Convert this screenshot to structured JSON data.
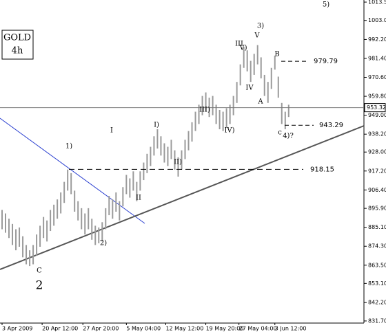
{
  "chart_data": {
    "type": "ohlc",
    "title": "GOLD",
    "subtitle": "4h",
    "high": [
      895,
      893,
      890,
      887,
      884,
      885,
      880,
      875,
      872,
      875,
      881,
      886,
      891,
      889,
      895,
      898,
      901,
      905,
      911,
      918,
      916,
      906,
      900,
      896,
      893,
      896,
      890,
      886,
      885,
      888,
      896,
      903,
      901,
      905,
      900,
      908,
      915,
      913,
      917,
      911,
      917,
      922,
      927,
      931,
      937,
      941,
      937,
      933,
      931,
      935,
      929,
      925,
      929,
      935,
      940,
      945,
      951,
      955,
      960,
      962,
      959,
      960,
      955,
      952,
      951,
      953,
      955,
      960,
      968,
      978,
      988,
      986,
      980,
      984,
      989,
      982,
      972,
      968,
      976,
      983,
      971,
      956,
      951,
      955
    ],
    "low": [
      884,
      882,
      879,
      875,
      872,
      874,
      868,
      864,
      863,
      864,
      869,
      874,
      879,
      877,
      883,
      886,
      890,
      893,
      899,
      906,
      904,
      894,
      889,
      884,
      881,
      884,
      878,
      875,
      876,
      877,
      884,
      892,
      890,
      894,
      889,
      897,
      904,
      902,
      906,
      900,
      906,
      912,
      916,
      920,
      926,
      930,
      926,
      922,
      920,
      924,
      918,
      914,
      918,
      924,
      929,
      934,
      940,
      944,
      949,
      951,
      948,
      949,
      944,
      941,
      940,
      942,
      944,
      949,
      956,
      966,
      976,
      974,
      968,
      972,
      978,
      970,
      960,
      956,
      964,
      975,
      959,
      944,
      941,
      948
    ],
    "color": "#9a9a9a",
    "last_price": 953.32,
    "levels": [
      979.79,
      943.29,
      918.15
    ],
    "xlim": [
      -0.6,
      104.8
    ],
    "xticks": [
      {
        "value": 0,
        "label": "3 Apr 2009"
      },
      {
        "value": 11.6,
        "label": "20 Apr 12:00"
      },
      {
        "value": 23.4,
        "label": "27 Apr 20:00"
      },
      {
        "value": 36,
        "label": "5 May 04:00"
      },
      {
        "value": 47.4,
        "label": "12 May 12:00"
      },
      {
        "value": 59,
        "label": "19 May 20:00"
      },
      {
        "value": 68.6,
        "label": "27 May 04:00"
      },
      {
        "value": 79,
        "label": "3 Jun 12:00"
      }
    ],
    "ylim": [
      830.5,
      1014.7
    ],
    "yticks": [
      {
        "value": 1013.5,
        "label": "1013.50"
      },
      {
        "value": 1003.05,
        "label": "1003.05"
      },
      {
        "value": 992.2,
        "label": "992.20"
      },
      {
        "value": 981.4,
        "label": "981.40"
      },
      {
        "value": 970.6,
        "label": "970.60"
      },
      {
        "value": 959.8,
        "label": "959.80"
      },
      {
        "value": 949,
        "label": "949.00"
      },
      {
        "value": 938.2,
        "label": "938.20"
      },
      {
        "value": 928,
        "label": "928.00"
      },
      {
        "value": 917.2,
        "label": "917.20"
      },
      {
        "value": 906.4,
        "label": "906.40"
      },
      {
        "value": 895.9,
        "label": "895.90"
      },
      {
        "value": 885.1,
        "label": "885.10"
      },
      {
        "value": 874.3,
        "label": "874.30"
      },
      {
        "value": 863.5,
        "label": "863.50"
      },
      {
        "value": 853.1,
        "label": "853.10"
      },
      {
        "value": 842.2,
        "label": "842.20"
      },
      {
        "value": 831.7,
        "label": "831.70"
      }
    ],
    "annotations": [
      {
        "text": "5)",
        "color": "#e07b1a"
      },
      {
        "text": "3)",
        "color": "#d62020"
      },
      {
        "text": "V",
        "color": "#1f2fb0"
      },
      {
        "text": "V)",
        "color": "#000000"
      },
      {
        "text": "III",
        "color": "#1f2fb0"
      },
      {
        "text": "B",
        "color": "#1f2fb0"
      },
      {
        "text": "IV",
        "color": "#1f2fb0"
      },
      {
        "text": "A",
        "color": "#1f2fb0"
      },
      {
        "text": "III)",
        "color": "#000000"
      },
      {
        "text": "IV)",
        "color": "#000000"
      },
      {
        "text": "c",
        "color": "#1f2fb0"
      },
      {
        "text": "4)?",
        "color": "#d62020"
      },
      {
        "text": "I)",
        "color": "#000000"
      },
      {
        "text": "I",
        "color": "#1f2fb0"
      },
      {
        "text": "1)",
        "color": "#e07b1a"
      },
      {
        "text": "II)",
        "color": "#000000"
      },
      {
        "text": "II",
        "color": "#1f2fb0"
      },
      {
        "text": "2)",
        "color": "#e07b1a"
      },
      {
        "text": "C",
        "color": "#000000"
      },
      {
        "text": "2",
        "color": "#1f2fb0"
      }
    ]
  }
}
